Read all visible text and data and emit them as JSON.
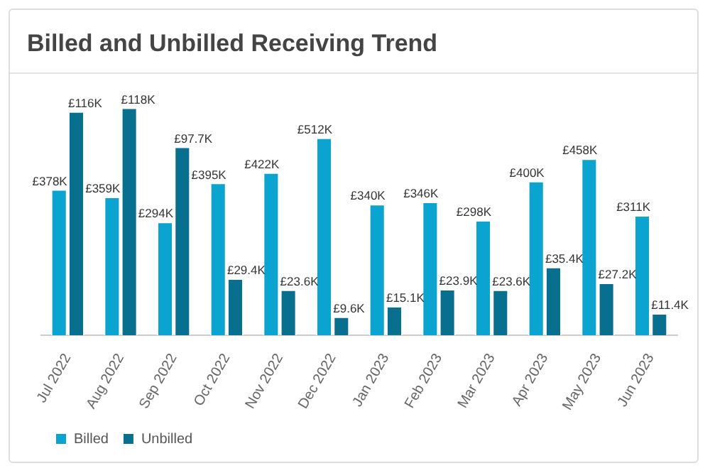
{
  "chart_data": {
    "type": "bar",
    "title": "Billed and Unbilled Receiving Trend",
    "categories": [
      "Jul 2022",
      "Aug 2022",
      "Sep 2022",
      "Oct 2022",
      "Nov 2022",
      "Dec 2022",
      "Jan 2023",
      "Feb 2023",
      "Mar 2023",
      "Apr 2023",
      "May 2023",
      "Jun 2023"
    ],
    "series": [
      {
        "name": "Billed",
        "color": "#0ba3cf",
        "values": [
          378,
          359,
          294,
          395,
          422,
          512,
          340,
          346,
          298,
          400,
          458,
          311
        ],
        "value_labels": [
          "£378K",
          "£359K",
          "£294K",
          "£395K",
          "£422K",
          "£512K",
          "£340K",
          "£346K",
          "£298K",
          "£400K",
          "£458K",
          "£311K"
        ]
      },
      {
        "name": "Unbilled",
        "color": "#086f8e",
        "axis": "y2",
        "values": [
          116,
          118,
          97.7,
          29.4,
          23.6,
          9.6,
          15.1,
          23.9,
          23.6,
          35.4,
          27.2,
          11.4
        ],
        "value_labels": [
          "£116K",
          "£118K",
          "£97.7K",
          "£29.4K",
          "£23.6K",
          "£9.6K",
          "£15.1K",
          "£23.9K",
          "£23.6K",
          "£35.4K",
          "£27.2K",
          "£11.4K"
        ]
      }
    ],
    "tick_labels": "x",
    "grid": false,
    "legend": "bottom left"
  }
}
